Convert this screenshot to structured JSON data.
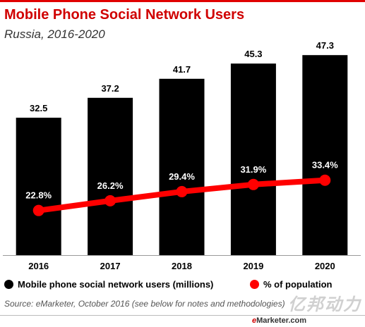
{
  "header": {
    "title": "Mobile Phone Social Network Users",
    "subtitle": "Russia, 2016-2020"
  },
  "legend": {
    "bars_label": "Mobile phone social network users (millions)",
    "line_label": "% of population"
  },
  "footer": {
    "source": "Source: eMarketer, October 2016 (see below for notes and methodologies)",
    "brand_e": "e",
    "brand_rest": "Marketer.com",
    "watermark": "亿邦动力"
  },
  "colors": {
    "title": "#d00000",
    "bars": "#000000",
    "line": "#ff0000"
  },
  "chart_data": {
    "type": "bar",
    "title": "Mobile Phone Social Network Users",
    "subtitle": "Russia, 2016-2020",
    "categories": [
      "2016",
      "2017",
      "2018",
      "2019",
      "2020"
    ],
    "series": [
      {
        "name": "Mobile phone social network users (millions)",
        "type": "bar",
        "values": [
          32.5,
          37.2,
          41.7,
          45.3,
          47.3
        ],
        "labels": [
          "32.5",
          "37.2",
          "41.7",
          "45.3",
          "47.3"
        ]
      },
      {
        "name": "% of population",
        "type": "line",
        "values": [
          22.8,
          26.2,
          29.4,
          31.9,
          33.4
        ],
        "labels": [
          "22.8%",
          "26.2%",
          "29.4%",
          "31.9%",
          "33.4%"
        ]
      }
    ],
    "xlabel": "",
    "ylabel": "",
    "ylim": [
      0,
      50
    ],
    "grid": false,
    "legend_position": "bottom"
  }
}
